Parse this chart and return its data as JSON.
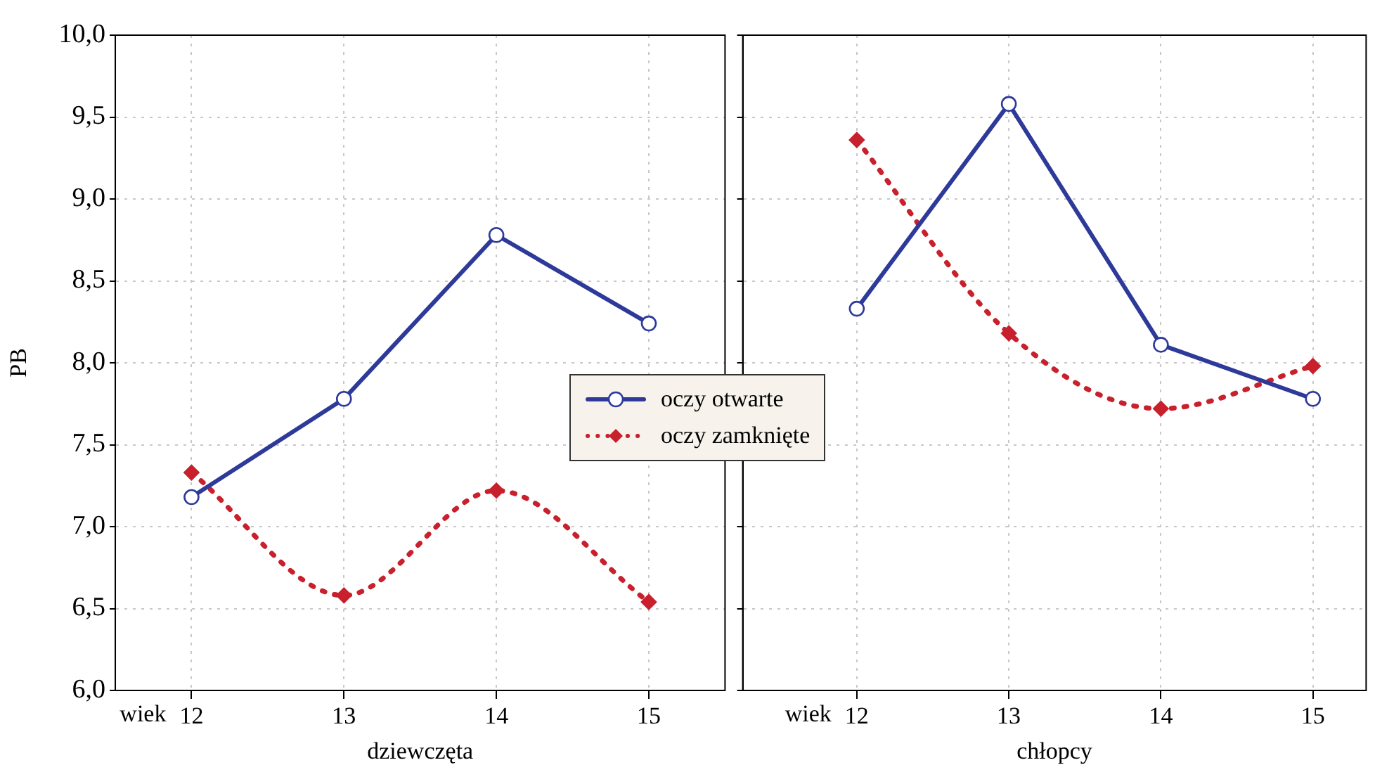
{
  "chart_data": [
    {
      "type": "line",
      "xlabel": "dziewczęta",
      "ylabel": "PB",
      "annotations": [
        "wiek"
      ],
      "x": [
        12,
        13,
        14,
        15
      ],
      "xlim": [
        11.5,
        15.5
      ],
      "xticks": [
        12,
        13,
        14,
        15
      ],
      "ylim": [
        6,
        10
      ],
      "yticks": [
        {
          "value": 6,
          "label": "6,0"
        },
        {
          "value": 6.5,
          "label": "6,5"
        },
        {
          "value": 7,
          "label": "7,0"
        },
        {
          "value": 7.5,
          "label": "7,5"
        },
        {
          "value": 8,
          "label": "8,0"
        },
        {
          "value": 8.5,
          "label": "8,5"
        },
        {
          "value": 9,
          "label": "9,0"
        },
        {
          "value": 9.5,
          "label": "9,5"
        },
        {
          "value": 10,
          "label": "10,0"
        }
      ],
      "grid": true,
      "legend": "right",
      "series": [
        {
          "name": "oczy otwarte",
          "color": "#2e3a9a",
          "marker": "circle",
          "line_style": "solid",
          "values": [
            7.18,
            7.78,
            8.78,
            8.24
          ]
        },
        {
          "name": "oczy zamknięte",
          "color": "#c8202c",
          "marker": "diamond",
          "line_style": "dotted",
          "values": [
            7.33,
            6.58,
            7.22,
            6.54
          ]
        }
      ]
    },
    {
      "type": "line",
      "xlabel": "chłopcy",
      "annotations": [
        "wiek"
      ],
      "x": [
        12,
        13,
        14,
        15
      ],
      "xlim": [
        11.25,
        15.35
      ],
      "xticks": [
        12,
        13,
        14,
        15
      ],
      "ylim": [
        6,
        10
      ],
      "yticks": [
        {
          "value": 6,
          "label": null
        },
        {
          "value": 6.5,
          "label": null
        },
        {
          "value": 7,
          "label": null
        },
        {
          "value": 7.5,
          "label": null
        },
        {
          "value": 8,
          "label": null
        },
        {
          "value": 8.5,
          "label": null
        },
        {
          "value": 9,
          "label": null
        },
        {
          "value": 9.5,
          "label": null
        },
        {
          "value": 10,
          "label": null
        }
      ],
      "grid": true,
      "tick_labels": "x",
      "series": [
        {
          "color": "#2e3a9a",
          "marker": "circle",
          "line_style": "solid",
          "values": [
            8.33,
            9.58,
            8.11,
            7.78
          ]
        },
        {
          "color": "#c8202c",
          "marker": "diamond",
          "line_style": "dotted",
          "values": [
            9.36,
            8.18,
            7.72,
            7.98
          ]
        }
      ]
    }
  ]
}
